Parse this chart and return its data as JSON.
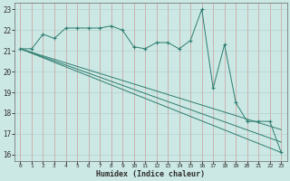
{
  "title": "",
  "xlabel": "Humidex (Indice chaleur)",
  "ylabel": "",
  "bg_color": "#cce8e4",
  "grid_color": "#b0b0b0",
  "line_color": "#2e7d70",
  "xlim": [
    -0.5,
    23.5
  ],
  "ylim": [
    15.7,
    23.3
  ],
  "xticks": [
    0,
    1,
    2,
    3,
    4,
    5,
    6,
    7,
    8,
    9,
    10,
    11,
    12,
    13,
    14,
    15,
    16,
    17,
    18,
    19,
    20,
    21,
    22,
    23
  ],
  "yticks": [
    16,
    17,
    18,
    19,
    20,
    21,
    22,
    23
  ],
  "series1_x": [
    0,
    1,
    2,
    3,
    4,
    5,
    6,
    7,
    8,
    9,
    10,
    11,
    12,
    13,
    14,
    15,
    16,
    17,
    18,
    19,
    20,
    21,
    22,
    23
  ],
  "series1_y": [
    21.1,
    21.1,
    21.8,
    21.6,
    22.1,
    22.1,
    22.1,
    22.1,
    22.2,
    22.0,
    21.2,
    21.1,
    21.4,
    21.4,
    21.1,
    21.5,
    23.0,
    19.2,
    21.3,
    18.5,
    17.6,
    17.6,
    17.6,
    16.1
  ],
  "line2_x": [
    0,
    23
  ],
  "line2_y": [
    21.1,
    16.1
  ],
  "line3_x": [
    0,
    23
  ],
  "line3_y": [
    21.1,
    16.6
  ],
  "line4_x": [
    0,
    23
  ],
  "line4_y": [
    21.1,
    17.2
  ]
}
